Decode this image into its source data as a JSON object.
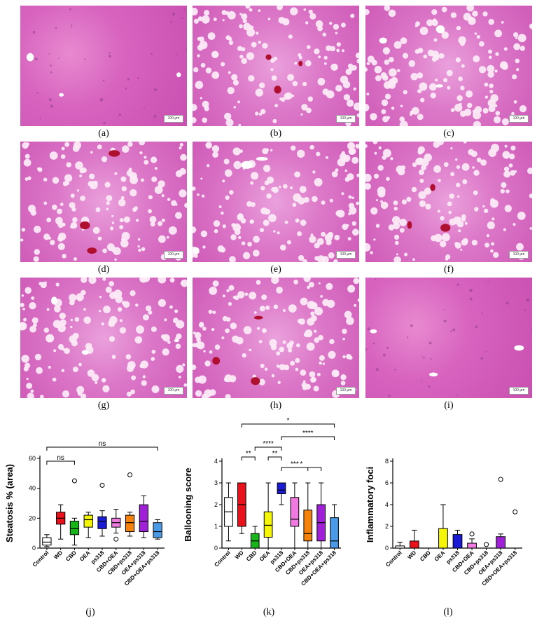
{
  "micrographs": [
    {
      "id": "a",
      "label": "(a)",
      "scale": "100 µm"
    },
    {
      "id": "b",
      "label": "(b)",
      "scale": "100 µm"
    },
    {
      "id": "c",
      "label": "(c)",
      "scale": "100 µm"
    },
    {
      "id": "d",
      "label": "(d)",
      "scale": "100 µm"
    },
    {
      "id": "e",
      "label": "(e)",
      "scale": "100 µm"
    },
    {
      "id": "f",
      "label": "(f)",
      "scale": "100 µm"
    },
    {
      "id": "g",
      "label": "(g)",
      "scale": "100 µm"
    },
    {
      "id": "h",
      "label": "(h)",
      "scale": "100 µm"
    },
    {
      "id": "i",
      "label": "(i)",
      "scale": "100 µm"
    }
  ],
  "colors": {
    "Control": "#ffffff",
    "WD": "#e8121c",
    "CBD": "#19b419",
    "OEA": "#f5f50a",
    "ps318": "#1b1bd6",
    "CBD+OEA": "#f07adf",
    "CBD+ps318": "#f5820a",
    "OEA+ps318": "#a020d8",
    "CBD+OEA+ps318": "#4a9ae8"
  },
  "chart_data": [
    {
      "type": "box",
      "panel": "(j)",
      "ylabel": "Steatosis % (area)",
      "ylim": [
        0,
        60
      ],
      "yticks": [
        0,
        20,
        40,
        60
      ],
      "categories": [
        "Control",
        "WD",
        "CBD",
        "OEA",
        "ps318",
        "CBD+OEA",
        "CBD+ps318",
        "OEA+ps318",
        "CBD+OEA+ps318"
      ],
      "boxes": [
        {
          "min": 1,
          "q1": 2,
          "median": 4,
          "q3": 7,
          "max": 9
        },
        {
          "min": 6,
          "q1": 16,
          "median": 20,
          "q3": 24,
          "max": 29
        },
        {
          "min": 2,
          "q1": 9,
          "median": 13,
          "q3": 18,
          "max": 20
        },
        {
          "min": 7,
          "q1": 14,
          "median": 19,
          "q3": 22,
          "max": 24
        },
        {
          "min": 8,
          "q1": 13,
          "median": 18,
          "q3": 21,
          "max": 25
        },
        {
          "min": 10,
          "q1": 14,
          "median": 17,
          "q3": 20,
          "max": 26
        },
        {
          "min": 8,
          "q1": 11,
          "median": 17,
          "q3": 22,
          "max": 24
        },
        {
          "min": 7,
          "q1": 11,
          "median": 18,
          "q3": 29,
          "max": 35
        },
        {
          "min": 6,
          "q1": 7,
          "median": 11,
          "q3": 17,
          "max": 19
        }
      ],
      "outliers": [
        [
          2,
          45
        ],
        [
          4,
          42
        ],
        [
          5,
          6
        ],
        [
          6,
          49
        ]
      ],
      "significance": [
        {
          "from": 0,
          "to": 8,
          "label": "ns"
        },
        {
          "from": 0,
          "to": 2,
          "label": "ns"
        }
      ]
    },
    {
      "type": "box",
      "panel": "(k)",
      "ylabel": "Ballooning score",
      "ylim": [
        0,
        4
      ],
      "yticks": [
        0,
        1,
        2,
        3,
        4
      ],
      "categories": [
        "Control",
        "WD",
        "CBD",
        "OEA",
        "ps318",
        "CBD+OEA",
        "CBD+ps318",
        "OEA+ps318",
        "CBD+OEA+ps318"
      ],
      "boxes": [
        {
          "min": 0.33,
          "q1": 1,
          "median": 1.67,
          "q3": 2.33,
          "max": 3
        },
        {
          "min": 0.67,
          "q1": 1,
          "median": 2,
          "q3": 3,
          "max": 3
        },
        {
          "min": 0,
          "q1": 0,
          "median": 0.33,
          "q3": 0.67,
          "max": 1
        },
        {
          "min": 0,
          "q1": 0.5,
          "median": 1.05,
          "q3": 1.67,
          "max": 3
        },
        {
          "min": 2,
          "q1": 2.5,
          "median": 2.67,
          "q3": 3,
          "max": 3
        },
        {
          "min": 0,
          "q1": 1,
          "median": 1.33,
          "q3": 2.33,
          "max": 3
        },
        {
          "min": 0,
          "q1": 0.33,
          "median": 0.67,
          "q3": 1.75,
          "max": 3
        },
        {
          "min": 0,
          "q1": 0.33,
          "median": 1.17,
          "q3": 2,
          "max": 3
        },
        {
          "min": 0,
          "q1": 0,
          "median": 0.33,
          "q3": 1.4,
          "max": 2
        }
      ],
      "significance": [
        {
          "from": 1,
          "to": 8,
          "label": "*"
        },
        {
          "from": 4,
          "to": 8,
          "label": "****"
        },
        {
          "from": 2,
          "to": 4,
          "label": "****"
        },
        {
          "from": 1,
          "to": 2,
          "label": "**"
        },
        {
          "from": 3,
          "to": 4,
          "label": "**"
        },
        {
          "from": 4,
          "to": 7,
          "label": "*"
        },
        {
          "from": 4,
          "to": 6,
          "label": "***"
        }
      ]
    },
    {
      "type": "bar",
      "panel": "(l)",
      "ylabel": "Inflammatory foci",
      "ylim": [
        0,
        8
      ],
      "yticks": [
        0,
        2,
        4,
        6,
        8
      ],
      "categories": [
        "Control",
        "WD",
        "CBD",
        "OEA",
        "ps318",
        "CBD+OEA",
        "CBD+ps318",
        "OEA+ps318",
        "CBD+OEA+ps318"
      ],
      "values": [
        0.2,
        0.65,
        0,
        1.8,
        1.25,
        0.45,
        0,
        1.05,
        0
      ],
      "errors": [
        0.35,
        1.0,
        0,
        2.2,
        0.4,
        0.4,
        0,
        0.25,
        0
      ],
      "outliers": [
        [
          5,
          1.3
        ],
        [
          6,
          0.33
        ],
        [
          7,
          6.33
        ],
        [
          8,
          3.33
        ]
      ]
    }
  ]
}
